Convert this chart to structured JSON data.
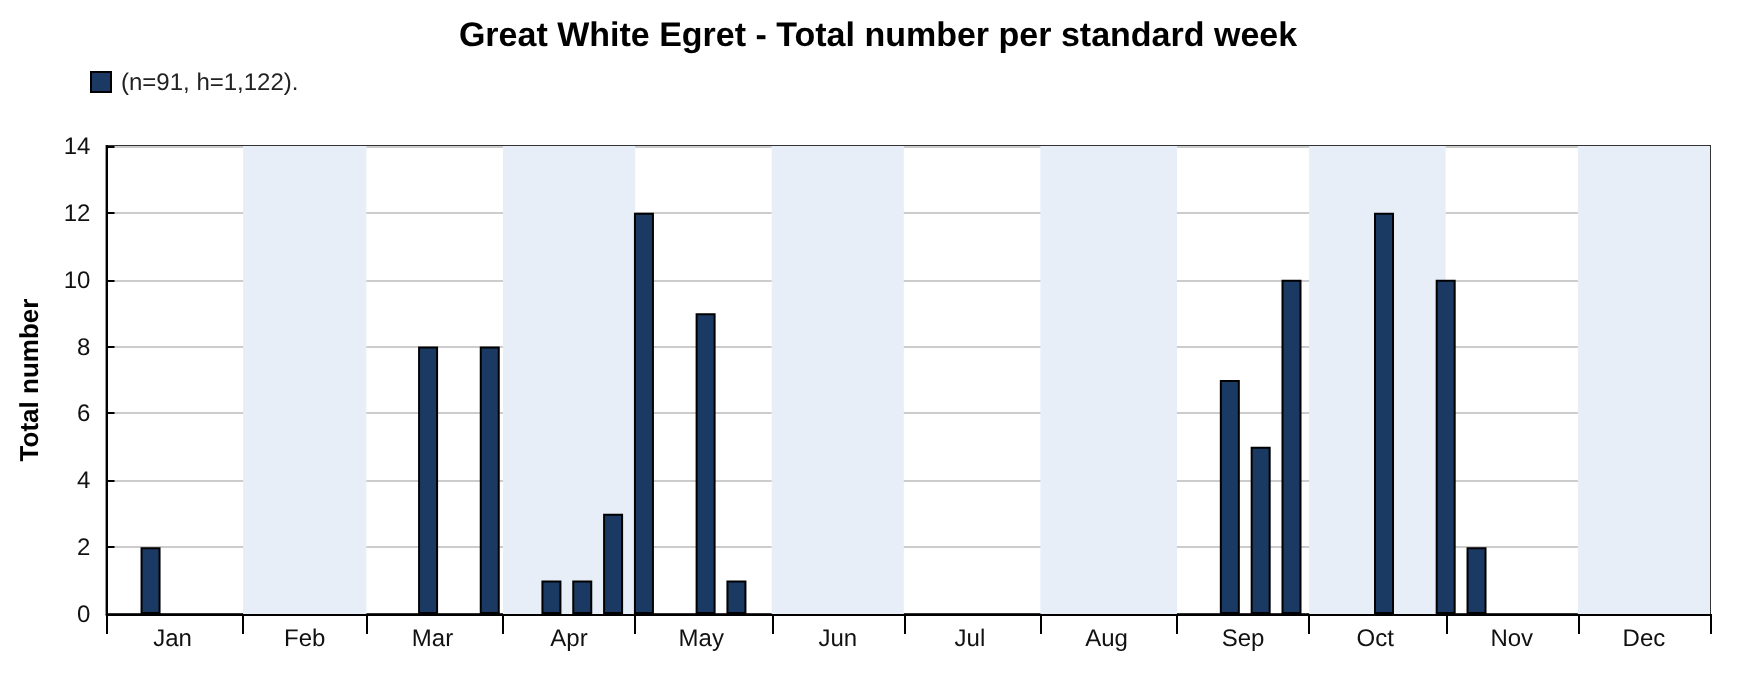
{
  "chart_data": {
    "type": "bar",
    "title": "Great White Egret - Total number per standard week",
    "ylabel": "Total number",
    "x": [
      "--01-11",
      "--03-15",
      "--03-29",
      "--04-12",
      "--04-19",
      "--04-26",
      "--05-03",
      "--05-17",
      "--05-24",
      "--09-13",
      "--09-20",
      "--09-27",
      "--10-18",
      "--11-01",
      "--11-08"
    ],
    "series": [
      {
        "name": "(n=91, h=1,122).",
        "color": "#1b3a63",
        "values": [
          2,
          8,
          8,
          1,
          1,
          3,
          12,
          9,
          1,
          7,
          5,
          10,
          12,
          10,
          2
        ]
      }
    ],
    "xlim": [
      "--01-01",
      "--12-31"
    ],
    "xticks": [
      {
        "value": "--01-01",
        "label": null
      },
      {
        "value": "--01-16",
        "label": "Jan"
      },
      {
        "value": "--02-01",
        "label": null
      },
      {
        "value": "--02-15",
        "label": "Feb"
      },
      {
        "value": "--03-01",
        "label": null
      },
      {
        "value": "--03-16",
        "label": "Mar"
      },
      {
        "value": "--04-01",
        "label": null
      },
      {
        "value": "--04-16",
        "label": "Apr"
      },
      {
        "value": "--05-01",
        "label": null
      },
      {
        "value": "--05-16",
        "label": "May"
      },
      {
        "value": "--06-01",
        "label": null
      },
      {
        "value": "--06-16",
        "label": "Jun"
      },
      {
        "value": "--07-01",
        "label": null
      },
      {
        "value": "--07-16",
        "label": "Jul"
      },
      {
        "value": "--08-01",
        "label": null
      },
      {
        "value": "--08-16",
        "label": "Aug"
      },
      {
        "value": "--09-01",
        "label": null
      },
      {
        "value": "--09-16",
        "label": "Sep"
      },
      {
        "value": "--10-01",
        "label": null
      },
      {
        "value": "--10-16",
        "label": "Oct"
      },
      {
        "value": "--11-01",
        "label": null
      },
      {
        "value": "--11-16",
        "label": "Nov"
      },
      {
        "value": "--12-01",
        "label": null
      },
      {
        "value": "--12-16",
        "label": "Dec"
      },
      {
        "value": "--12-31",
        "label": null
      }
    ],
    "ylim": [
      0,
      14
    ],
    "yticks": [
      0,
      2,
      4,
      6,
      8,
      10,
      12,
      14
    ],
    "bands": [
      {
        "axis": "x",
        "from": "--02-01",
        "to": "--03-01",
        "color": "#e8eef8"
      },
      {
        "axis": "x",
        "from": "--04-01",
        "to": "--05-01",
        "color": "#e8eef8"
      },
      {
        "axis": "x",
        "from": "--06-01",
        "to": "--07-01",
        "color": "#e8eef8"
      },
      {
        "axis": "x",
        "from": "--08-01",
        "to": "--09-01",
        "color": "#e8eef8"
      },
      {
        "axis": "x",
        "from": "--10-01",
        "to": "--11-01",
        "color": "#e8eef8"
      },
      {
        "axis": "x",
        "from": "--12-01",
        "to": "--12-31",
        "color": "#e8eef8"
      }
    ],
    "grid": "y",
    "legend": "top left"
  }
}
